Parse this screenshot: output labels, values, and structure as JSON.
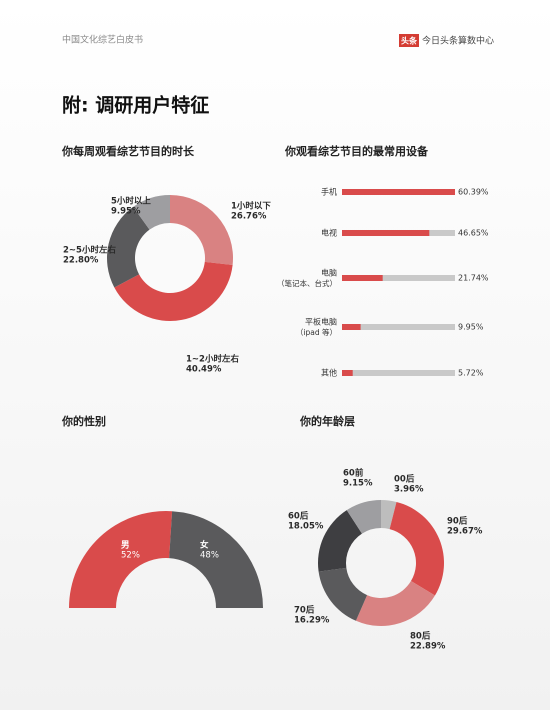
{
  "header": {
    "left": "中国文化综艺白皮书",
    "logo": "头条",
    "right": "今日头条算数中心"
  },
  "page_title": "附: 调研用户特征",
  "chart_data": [
    {
      "type": "donut",
      "title": "你每周观看综艺节目的时长",
      "categories": [
        "1小时以下",
        "1~2小时左右",
        "2~5小时左右",
        "5小时以上"
      ],
      "values": [
        26.76,
        40.49,
        22.8,
        9.95
      ],
      "value_labels": [
        "26.76%",
        "40.49%",
        "22.80%",
        "9.95%"
      ],
      "colors": [
        "#d98282",
        "#d94b4b",
        "#5a5a5c",
        "#9e9ea1"
      ]
    },
    {
      "type": "bar",
      "title": "你观看综艺节目的最常用设备",
      "categories": [
        "手机",
        "电视",
        "电脑",
        "平板电脑",
        "其他"
      ],
      "category_notes": [
        null,
        null,
        "（笔记本、台式）",
        "（ipad 等）",
        null
      ],
      "values": [
        60.39,
        46.65,
        21.74,
        9.95,
        5.72
      ],
      "value_labels": [
        "60.39%",
        "46.65%",
        "21.74%",
        "9.95%",
        "5.72%"
      ],
      "color": "#d94b4b",
      "track_color": "#c9c9c9"
    },
    {
      "type": "half-donut",
      "title": "你的性别",
      "categories": [
        "男",
        "女"
      ],
      "values": [
        52,
        48
      ],
      "value_labels": [
        "52%",
        "48%"
      ],
      "colors": [
        "#d94b4b",
        "#5a5a5c"
      ]
    },
    {
      "type": "donut",
      "title": "你的年龄层",
      "categories": [
        "00后",
        "90后",
        "80后",
        "70后",
        "60后",
        "60前"
      ],
      "values": [
        3.96,
        29.67,
        22.89,
        16.29,
        18.05,
        9.15
      ],
      "value_labels": [
        "3.96%",
        "29.67%",
        "22.89%",
        "16.29%",
        "18.05%",
        "9.15%"
      ],
      "colors": [
        "#bdbdbd",
        "#d94b4b",
        "#d98282",
        "#5a5a5c",
        "#3e3e41",
        "#9e9ea1"
      ]
    }
  ]
}
